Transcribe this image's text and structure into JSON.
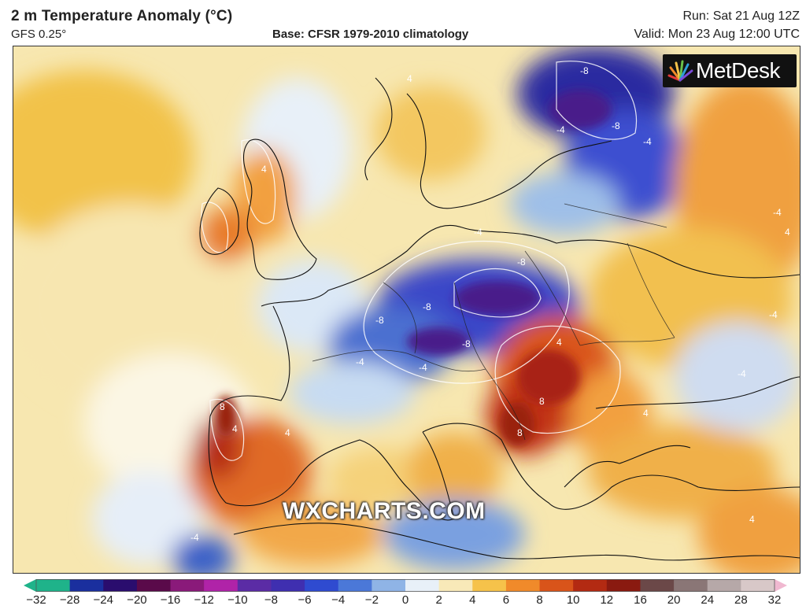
{
  "header": {
    "title": "2 m Temperature Anomaly (°C)",
    "model": "GFS 0.25°",
    "base": "Base: CFSR 1979-2010 climatology",
    "run": "Run: Sat 21 Aug 12Z",
    "valid": "Valid: Mon 23 Aug 12:00 UTC"
  },
  "logo": {
    "text": "MetDesk",
    "icon": "metdesk-sunburst-icon"
  },
  "watermark": "WXCHARTS.COM",
  "colorbar": {
    "ticks": [
      "−32",
      "−28",
      "−24",
      "−20",
      "−16",
      "−12",
      "−10",
      "−8",
      "−6",
      "−4",
      "−2",
      "0",
      "2",
      "4",
      "6",
      "8",
      "10",
      "12",
      "16",
      "20",
      "24",
      "28",
      "32"
    ],
    "colors": [
      "#1fb38a",
      "#1a2f9e",
      "#2a0d6e",
      "#5a0a4a",
      "#8a1a7a",
      "#b023a8",
      "#5b2ca5",
      "#3f2fb0",
      "#2f4bd0",
      "#4b78d8",
      "#8fb4e6",
      "#e8f0f8",
      "#f8e9b8",
      "#f6c24a",
      "#f08a2a",
      "#d9541a",
      "#b32a12",
      "#8a1a10",
      "#6b4848",
      "#8a7676",
      "#b6a8a8",
      "#d8c8c8",
      "#f0b8d0"
    ]
  },
  "map": {
    "contour_labels": [
      "-8",
      "-8",
      "-8",
      "-4",
      "-4",
      "4",
      "-8",
      "-8",
      "-8",
      "-4",
      "-4",
      "-4",
      "4",
      "4",
      "8",
      "8",
      "4",
      "4",
      "-4",
      "-4",
      "-4",
      "4",
      "4",
      "4",
      "8",
      "-4"
    ]
  }
}
